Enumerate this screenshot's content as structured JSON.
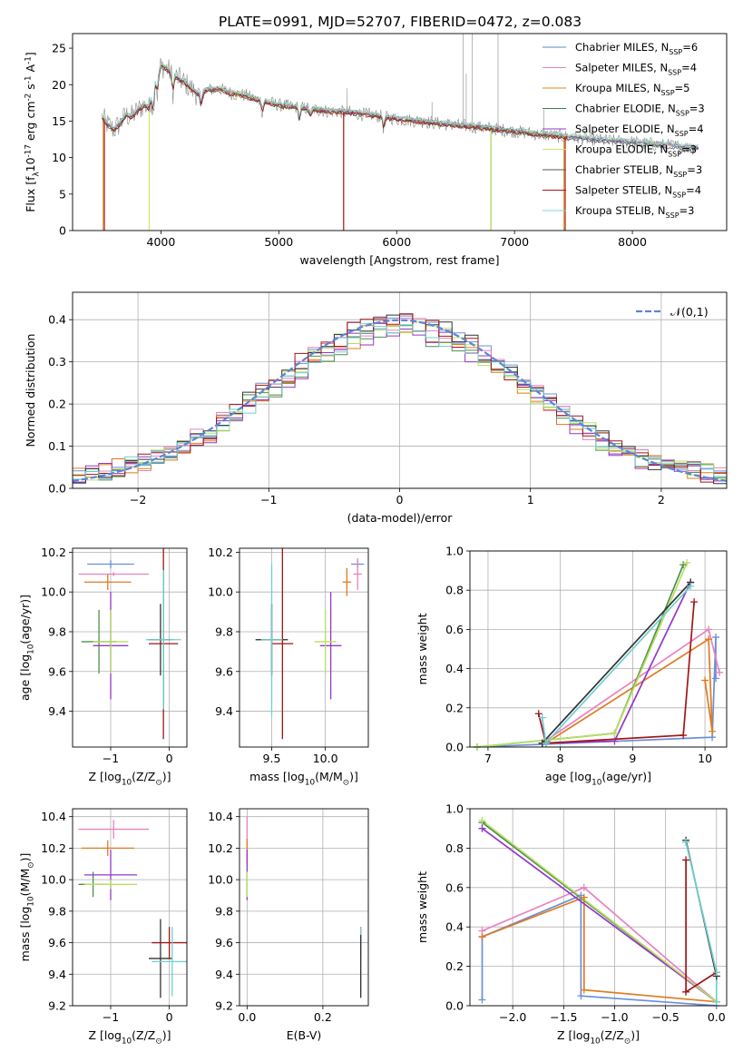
{
  "figure": {
    "title": "PLATE=0991, MJD=52707, FIBERID=0472, z=0.083"
  },
  "palette": {
    "models": [
      "#5b85d6",
      "#e882c0",
      "#d98a1b",
      "#3f7f4f",
      "#9536c8",
      "#c6e866",
      "#555555",
      "#a31515",
      "#7fd6d6"
    ],
    "sfh": [
      "#6b8fd8",
      "#e882c0",
      "#e07a1f",
      "#4f8f4f",
      "#9536c8",
      "#b7e05f",
      "#333333",
      "#a31515",
      "#6fcfcf"
    ],
    "normal_curve": "#5b85d6",
    "grid": "#b0b0b0"
  },
  "chart_data": [
    {
      "type": "line",
      "id": "spectrum",
      "xlabel": "wavelength [Angstrom, rest frame]",
      "ylabel": "Flux [f$_\\lambda$10$^{-17}$ erg cm$^{-2}$ s$^{-1}$ A$^{-1}$]",
      "xlim": [
        3250,
        8800
      ],
      "ylim": [
        0,
        27
      ],
      "xticks": [
        4000,
        5000,
        6000,
        7000,
        8000
      ],
      "yticks": [
        0,
        5,
        10,
        15,
        20,
        25
      ],
      "grid": false,
      "legend_position": "top-right",
      "continuum": {
        "x": [
          3500,
          3550,
          3600,
          3650,
          3700,
          3750,
          3800,
          3850,
          3900,
          3950,
          4000,
          4050,
          4100,
          4150,
          4200,
          4300,
          4400,
          4500,
          4600,
          4700,
          4800,
          4900,
          5000,
          5200,
          5400,
          5600,
          5800,
          6000,
          6200,
          6400,
          6600,
          6800,
          7000,
          7200,
          7400,
          7600,
          7800,
          8000,
          8200,
          8400,
          8600
        ],
        "y": [
          15.5,
          14.5,
          13.8,
          14.6,
          15.8,
          15.6,
          16.4,
          17.2,
          16.8,
          20.5,
          22.6,
          22.2,
          21.4,
          20.8,
          20.3,
          18.8,
          19.3,
          19.4,
          18.8,
          18.6,
          18.0,
          17.6,
          17.2,
          16.8,
          16.4,
          16.2,
          15.8,
          15.3,
          15.0,
          14.6,
          14.3,
          14.0,
          13.6,
          13.2,
          12.9,
          12.6,
          12.3,
          12.1,
          11.8,
          11.5,
          11.2
        ]
      },
      "series": [
        {
          "name": "Chabrier MILES, N$_{SSP}$=6",
          "color": "#5b85d6",
          "drops": [],
          "offset": 0.1
        },
        {
          "name": "Salpeter MILES, N$_{SSP}$=4",
          "color": "#e882c0",
          "drops": [],
          "offset": 0.2
        },
        {
          "name": "Kroupa MILES, N$_{SSP}$=5",
          "color": "#d98a1b",
          "drops": [
            3510,
            5550,
            7420
          ],
          "offset": -0.1
        },
        {
          "name": "Chabrier ELODIE, N$_{SSP}$=3",
          "color": "#3f7f4f",
          "drops": [
            6800
          ],
          "offset": 0.0
        },
        {
          "name": "Salpeter ELODIE, N$_{SSP}$=4",
          "color": "#9536c8",
          "drops": [],
          "offset": 0.15
        },
        {
          "name": "Kroupa ELODIE, N$_{SSP}$=3",
          "color": "#c6e866",
          "drops": [
            3900,
            6800
          ],
          "offset": 0.25
        },
        {
          "name": "Chabrier STELIB, N$_{SSP}$=3",
          "color": "#555555",
          "drops": [],
          "offset": -0.2
        },
        {
          "name": "Salpeter STELIB, N$_{SSP}$=4",
          "color": "#a31515",
          "drops": [
            3520,
            5550,
            7430
          ],
          "offset": -0.15
        },
        {
          "name": "Kroupa STELIB, N$_{SSP}$=3",
          "color": "#7fd6d6",
          "drops": [],
          "offset": 0.3
        }
      ]
    },
    {
      "type": "line",
      "id": "residual-histogram",
      "xlabel": "(data-model)/error",
      "ylabel": "Normed distribution",
      "xlim": [
        -2.5,
        2.5
      ],
      "ylim": [
        0,
        0.465
      ],
      "xticks": [
        -2,
        -1,
        0,
        1,
        2
      ],
      "yticks": [
        0.0,
        0.1,
        0.2,
        0.3,
        0.4
      ],
      "grid": true,
      "legend_position": "top-right",
      "bin_edges": [
        -2.5,
        -2.4,
        -2.3,
        -2.2,
        -2.1,
        -2.0,
        -1.9,
        -1.8,
        -1.7,
        -1.6,
        -1.5,
        -1.4,
        -1.3,
        -1.2,
        -1.1,
        -1.0,
        -0.9,
        -0.8,
        -0.7,
        -0.6,
        -0.5,
        -0.4,
        -0.3,
        -0.2,
        -0.1,
        0.0,
        0.1,
        0.2,
        0.3,
        0.4,
        0.5,
        0.6,
        0.7,
        0.8,
        0.9,
        1.0,
        1.1,
        1.2,
        1.3,
        1.4,
        1.5,
        1.6,
        1.7,
        1.8,
        1.9,
        2.0,
        2.1,
        2.2,
        2.3,
        2.4,
        2.5
      ],
      "normal_curve": {
        "label": "$\\mathcal{N}(0,1)$",
        "mean": 0,
        "sigma": 1
      }
    },
    {
      "type": "scatter",
      "id": "age-vs-z",
      "xlabel": "Z [log$_{10}$(Z/Z$_\\odot$)]",
      "ylabel": "age  [log$_{10}$(age/yr)]",
      "xlim": [
        -1.65,
        0.3
      ],
      "ylim": [
        9.22,
        10.22
      ],
      "xticks": [
        -1,
        0
      ],
      "yticks": [
        9.4,
        9.6,
        9.8,
        10.0,
        10.2
      ],
      "grid": true,
      "errorbars": [
        {
          "model": 0,
          "x": -1.0,
          "y": 10.14,
          "xerr": 0.4,
          "yerr": 0.02
        },
        {
          "model": 1,
          "x": -0.95,
          "y": 10.09,
          "xerr": 0.6,
          "yerr": 0.01
        },
        {
          "model": 2,
          "x": -1.05,
          "y": 10.05,
          "xerr": 0.4,
          "yerr": 0.04
        },
        {
          "model": 3,
          "x": -1.2,
          "y": 9.75,
          "xerr": 0.3,
          "yerr": 0.16
        },
        {
          "model": 4,
          "x": -1.0,
          "y": 9.73,
          "xerr": 0.3,
          "yerr": 0.27
        },
        {
          "model": 5,
          "x": -1.0,
          "y": 9.75,
          "xerr": 0.3,
          "yerr": 0.16
        },
        {
          "model": 6,
          "x": -0.15,
          "y": 9.76,
          "xerr": 0.2,
          "yerr": 0.18
        },
        {
          "model": 7,
          "x": -0.1,
          "y": 9.74,
          "xerr": 0.25,
          "yerr": 0.48
        },
        {
          "model": 8,
          "x": -0.1,
          "y": 9.76,
          "xerr": 0.3,
          "yerr": 0.35
        }
      ]
    },
    {
      "type": "scatter",
      "id": "age-vs-mass",
      "xlabel": "mass [log$_{10}$(M/M$_\\odot$)]",
      "ylabel": "",
      "xlim": [
        9.2,
        10.4
      ],
      "ylim": [
        9.22,
        10.22
      ],
      "xticks": [
        9.5,
        10.0
      ],
      "tick_labels_x": [
        "9.5",
        "10.0"
      ],
      "yticks": [
        9.4,
        9.6,
        9.8,
        10.0,
        10.2
      ],
      "grid": true,
      "errorbars": [
        {
          "model": 0,
          "x": 10.3,
          "y": 10.14,
          "xerr": 0.06,
          "yerr": 0.02
        },
        {
          "model": 1,
          "x": 10.3,
          "y": 10.09,
          "xerr": 0.04,
          "yerr": 0.08
        },
        {
          "model": 2,
          "x": 10.2,
          "y": 10.05,
          "xerr": 0.04,
          "yerr": 0.07
        },
        {
          "model": 3,
          "x": 9.5,
          "y": 9.76,
          "xerr": 0.15,
          "yerr": 0.18
        },
        {
          "model": 4,
          "x": 10.05,
          "y": 9.73,
          "xerr": 0.1,
          "yerr": 0.27
        },
        {
          "model": 5,
          "x": 10.0,
          "y": 9.75,
          "xerr": 0.1,
          "yerr": 0.16
        },
        {
          "model": 6,
          "x": 9.5,
          "y": 9.76,
          "xerr": 0.15,
          "yerr": 0.18
        },
        {
          "model": 7,
          "x": 9.6,
          "y": 9.74,
          "xerr": 0.1,
          "yerr": 0.48
        },
        {
          "model": 8,
          "x": 9.5,
          "y": 9.76,
          "xerr": 0.1,
          "yerr": 0.38
        }
      ]
    },
    {
      "type": "line",
      "id": "mass-weight-vs-age",
      "xlabel": "age  [log$_{10}$(age/yr)]",
      "ylabel": "mass weight",
      "xlim": [
        6.75,
        10.3
      ],
      "ylim": [
        0,
        1.0
      ],
      "xticks": [
        7,
        8,
        9,
        10
      ],
      "yticks": [
        0.0,
        0.2,
        0.4,
        0.6,
        0.8,
        1.0
      ],
      "grid": true,
      "series": [
        {
          "model": 0,
          "x": [
            6.85,
            10.1,
            10.15,
            10.15
          ],
          "y": [
            0.0,
            0.05,
            0.56,
            0.35
          ]
        },
        {
          "model": 1,
          "x": [
            7.75,
            10.05,
            10.2
          ],
          "y": [
            0.02,
            0.6,
            0.38
          ]
        },
        {
          "model": 2,
          "x": [
            7.8,
            10.05,
            10.1,
            10.0
          ],
          "y": [
            0.02,
            0.55,
            0.08,
            0.34
          ]
        },
        {
          "model": 3,
          "x": [
            6.85,
            8.75,
            9.7
          ],
          "y": [
            0.0,
            0.07,
            0.93
          ]
        },
        {
          "model": 4,
          "x": [
            7.75,
            8.75,
            9.8
          ],
          "y": [
            0.02,
            0.03,
            0.84
          ]
        },
        {
          "model": 5,
          "x": [
            6.85,
            8.75,
            9.75
          ],
          "y": [
            0.0,
            0.07,
            0.94
          ]
        },
        {
          "model": 6,
          "x": [
            7.75,
            9.8
          ],
          "y": [
            0.02,
            0.84
          ]
        },
        {
          "model": 7,
          "x": [
            7.7,
            7.8,
            9.7,
            9.85
          ],
          "y": [
            0.17,
            0.02,
            0.06,
            0.74
          ]
        },
        {
          "model": 8,
          "x": [
            7.75,
            7.8,
            9.8
          ],
          "y": [
            0.15,
            0.02,
            0.82
          ]
        }
      ]
    },
    {
      "type": "scatter",
      "id": "mass-vs-z",
      "xlabel": "Z [log$_{10}$(Z/Z$_\\odot$)]",
      "ylabel": "mass [log$_{10}$(M/M$_\\odot$)]",
      "xlim": [
        -1.65,
        0.3
      ],
      "ylim": [
        9.2,
        10.45
      ],
      "xticks": [
        -1,
        0
      ],
      "yticks": [
        9.2,
        9.4,
        9.6,
        9.8,
        10.0,
        10.2,
        10.4
      ],
      "grid": true,
      "errorbars": [
        {
          "model": 0,
          "x": -1.4,
          "y": 10.33,
          "xerr": 0.0,
          "yerr": 0.0
        },
        {
          "model": 1,
          "x": -0.95,
          "y": 10.32,
          "xerr": 0.6,
          "yerr": 0.06
        },
        {
          "model": 2,
          "x": -1.05,
          "y": 10.2,
          "xerr": 0.45,
          "yerr": 0.05
        },
        {
          "model": 3,
          "x": -1.3,
          "y": 9.97,
          "xerr": 0.25,
          "yerr": 0.08
        },
        {
          "model": 4,
          "x": -1.0,
          "y": 10.03,
          "xerr": 0.45,
          "yerr": 0.16
        },
        {
          "model": 5,
          "x": -1.0,
          "y": 9.97,
          "xerr": 0.45,
          "yerr": 0.03
        },
        {
          "model": 6,
          "x": -0.15,
          "y": 9.5,
          "xerr": 0.2,
          "yerr": 0.25
        },
        {
          "model": 7,
          "x": 0.0,
          "y": 9.6,
          "xerr": 0.3,
          "yerr": 0.1
        },
        {
          "model": 8,
          "x": 0.05,
          "y": 9.48,
          "xerr": 0.35,
          "yerr": 0.22
        }
      ]
    },
    {
      "type": "scatter",
      "id": "mass-vs-ebv",
      "xlabel": "E(B-V)",
      "ylabel": "",
      "xlim": [
        -0.02,
        0.32
      ],
      "ylim": [
        9.2,
        10.45
      ],
      "xticks": [
        0.0,
        0.2
      ],
      "tick_labels_x": [
        "0.0",
        "0.2"
      ],
      "yticks": [
        9.2,
        9.4,
        9.6,
        9.8,
        10.0,
        10.2,
        10.4
      ],
      "grid": true,
      "errorbars": [
        {
          "model": 1,
          "x": 0.0,
          "y": 10.3,
          "xerr": 0.0,
          "yerr": 0.1
        },
        {
          "model": 2,
          "x": 0.0,
          "y": 10.18,
          "xerr": 0.0,
          "yerr": 0.08
        },
        {
          "model": 4,
          "x": 0.0,
          "y": 10.03,
          "xerr": 0.0,
          "yerr": 0.16
        },
        {
          "model": 5,
          "x": 0.0,
          "y": 9.97,
          "xerr": 0.0,
          "yerr": 0.08
        },
        {
          "model": 7,
          "x": 0.3,
          "y": 9.6,
          "xerr": 0.0,
          "yerr": 0.1
        },
        {
          "model": 8,
          "x": 0.3,
          "y": 9.48,
          "xerr": 0.0,
          "yerr": 0.22
        },
        {
          "model": 6,
          "x": 0.3,
          "y": 9.45,
          "xerr": 0.0,
          "yerr": 0.2
        }
      ]
    },
    {
      "type": "line",
      "id": "mass-weight-vs-z",
      "xlabel": "Z [log$_{10}$(Z/Z$_\\odot$)]",
      "ylabel": "mass weight",
      "xlim": [
        -2.42,
        0.1
      ],
      "ylim": [
        0,
        1.0
      ],
      "xticks": [
        -2.0,
        -1.5,
        -1.0,
        -0.5,
        0.0
      ],
      "tick_labels_x": [
        "−2.0",
        "−1.5",
        "−1.0",
        "−0.5",
        "0.0"
      ],
      "yticks": [
        0.0,
        0.2,
        0.4,
        0.6,
        0.8,
        1.0
      ],
      "grid": true,
      "series": [
        {
          "model": 0,
          "x": [
            -2.3,
            -2.3,
            -1.33,
            -1.33,
            0.0
          ],
          "y": [
            0.03,
            0.35,
            0.56,
            0.05,
            0.0
          ]
        },
        {
          "model": 1,
          "x": [
            -2.3,
            -1.3,
            0.0
          ],
          "y": [
            0.38,
            0.6,
            0.02
          ]
        },
        {
          "model": 2,
          "x": [
            -2.3,
            -1.3,
            -1.3,
            0.0
          ],
          "y": [
            0.35,
            0.55,
            0.08,
            0.02
          ]
        },
        {
          "model": 3,
          "x": [
            -2.3,
            0.0
          ],
          "y": [
            0.93,
            0.02
          ]
        },
        {
          "model": 4,
          "x": [
            -2.3,
            0.0
          ],
          "y": [
            0.9,
            0.02
          ]
        },
        {
          "model": 5,
          "x": [
            -2.3,
            0.0
          ],
          "y": [
            0.94,
            0.02
          ]
        },
        {
          "model": 6,
          "x": [
            -0.3,
            0.0
          ],
          "y": [
            0.84,
            0.15
          ]
        },
        {
          "model": 7,
          "x": [
            -0.3,
            -0.3,
            0.0
          ],
          "y": [
            0.74,
            0.07,
            0.17
          ]
        },
        {
          "model": 8,
          "x": [
            -0.3,
            0.0,
            0.0
          ],
          "y": [
            0.83,
            0.17,
            0.02
          ]
        }
      ]
    }
  ]
}
